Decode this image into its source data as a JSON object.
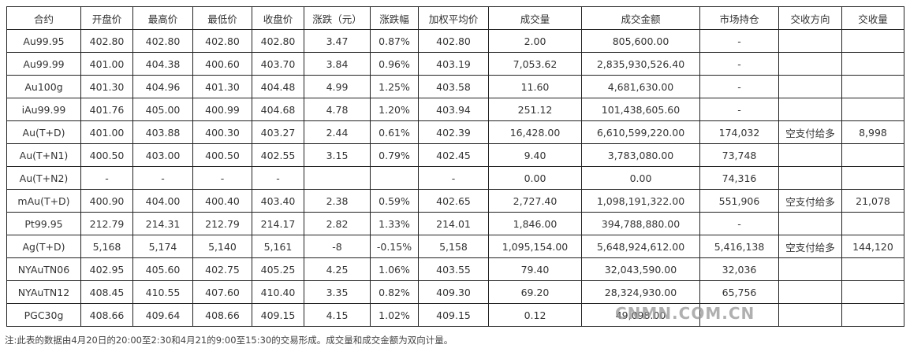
{
  "table": {
    "header": [
      "合约",
      "开盘价",
      "最高价",
      "最低价",
      "收盘价",
      "涨跌（元）",
      "涨跌幅",
      "加权平均价",
      "成交量",
      "成交金额",
      "市场持仓",
      "交收方向",
      "交收量"
    ],
    "rows": [
      [
        "Au99.95",
        "402.80",
        "402.80",
        "402.80",
        "402.80",
        "3.47",
        "0.87%",
        "402.80",
        "2.00",
        "805,600.00",
        "-",
        null,
        null
      ],
      [
        "Au99.99",
        "401.00",
        "404.38",
        "400.60",
        "403.70",
        "3.84",
        "0.96%",
        "403.19",
        "7,053.62",
        "2,835,930,526.40",
        "-",
        null,
        null
      ],
      [
        "Au100g",
        "401.30",
        "404.96",
        "401.30",
        "404.48",
        "4.99",
        "1.25%",
        "403.58",
        "11.60",
        "4,681,630.00",
        "-",
        null,
        null
      ],
      [
        "iAu99.99",
        "401.76",
        "405.00",
        "400.99",
        "404.68",
        "4.78",
        "1.20%",
        "403.94",
        "251.12",
        "101,438,605.60",
        "-",
        null,
        null
      ],
      [
        "Au(T+D)",
        "401.00",
        "403.88",
        "400.30",
        "403.27",
        "2.44",
        "0.61%",
        "402.39",
        "16,428.00",
        "6,610,599,220.00",
        "174,032",
        "空支付给多",
        "8,998"
      ],
      [
        "Au(T+N1)",
        "400.50",
        "403.00",
        "400.50",
        "402.55",
        "3.15",
        "0.79%",
        "402.45",
        "9.40",
        "3,783,080.00",
        "73,748",
        null,
        null
      ],
      [
        "Au(T+N2)",
        "-",
        "-",
        "-",
        "-",
        null,
        null,
        "-",
        "0.00",
        "0.00",
        "74,316",
        null,
        null
      ],
      [
        "mAu(T+D)",
        "400.90",
        "404.00",
        "400.40",
        "403.40",
        "2.38",
        "0.59%",
        "402.65",
        "2,727.40",
        "1,098,191,322.00",
        "551,906",
        "空支付给多",
        "21,078"
      ],
      [
        "Pt99.95",
        "212.79",
        "214.31",
        "212.79",
        "214.17",
        "2.82",
        "1.33%",
        "214.01",
        "1,846.00",
        "394,788,880.00",
        "-",
        null,
        null
      ],
      [
        "Ag(T+D)",
        "5,168",
        "5,174",
        "5,140",
        "5,161",
        "-8",
        "-0.15%",
        "5,158",
        "1,095,154.00",
        "5,648,924,612.00",
        "5,416,138",
        "空支付给多",
        "144,120"
      ],
      [
        "NYAuTN06",
        "402.95",
        "405.60",
        "402.75",
        "405.25",
        "4.25",
        "1.06%",
        "403.55",
        "79.40",
        "32,043,590.00",
        "32,036",
        null,
        null
      ],
      [
        "NYAuTN12",
        "408.45",
        "410.55",
        "407.60",
        "410.40",
        "3.35",
        "0.82%",
        "409.30",
        "69.20",
        "28,324,930.00",
        "65,756",
        null,
        null
      ],
      [
        "PGC30g",
        "408.66",
        "409.64",
        "408.66",
        "409.15",
        "4.15",
        "1.02%",
        "409.15",
        "0.12",
        "49,098.00",
        null,
        null,
        null
      ]
    ]
  },
  "note": "注:此表的数据由4月20日的20:00至2:30和4月21的9:00至15:30的交易形成。成交量和成交金额为双向计量。",
  "watermark": "CNMN.COM.CN"
}
